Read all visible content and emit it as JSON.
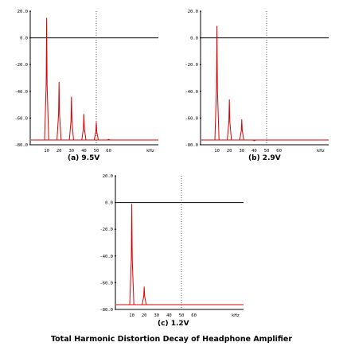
{
  "title": "Total Harmonic Distortion Decay of Headphone Amplifier",
  "colors": {
    "signal": "#dd0000",
    "zero_line": "#000000",
    "grid": "#555555",
    "axis": "#000000"
  },
  "chart_data": [
    {
      "type": "line",
      "caption": "(a) 9.5V",
      "ylim": [
        -80,
        20
      ],
      "y_ticks": [
        "20.0",
        "0.0",
        "-20.0",
        "-40.0",
        "-60.0",
        "-80.0"
      ],
      "x_ticks": [
        "10",
        "20",
        "30",
        "40",
        "50",
        "60"
      ],
      "x_unit": "kHz",
      "xlim": [
        0,
        100
      ],
      "grid": "dotted vertical at 50 kHz",
      "peaks": [
        {
          "x": 10,
          "y": 15
        },
        {
          "x": 20,
          "y": -33
        },
        {
          "x": 30,
          "y": -44
        },
        {
          "x": 40,
          "y": -57
        },
        {
          "x": 50,
          "y": -63
        },
        {
          "x": 60,
          "y": -76
        }
      ]
    },
    {
      "type": "line",
      "caption": "(b) 2.9V",
      "ylim": [
        -80,
        20
      ],
      "y_ticks": [
        "20.0",
        "0.0",
        "-20.0",
        "-40.0",
        "-60.0",
        "-80.0"
      ],
      "x_ticks": [
        "10",
        "20",
        "30",
        "40",
        "50",
        "60"
      ],
      "x_unit": "kHz",
      "xlim": [
        0,
        100
      ],
      "grid": "dotted vertical at 50 kHz",
      "peaks": [
        {
          "x": 10,
          "y": 9
        },
        {
          "x": 20,
          "y": -46
        },
        {
          "x": 30,
          "y": -61
        },
        {
          "x": 40,
          "y": -77
        }
      ]
    },
    {
      "type": "line",
      "caption": "(c) 1.2V",
      "ylim": [
        -80,
        20
      ],
      "y_ticks": [
        "20.0",
        "0.0",
        "-20.0",
        "-40.0",
        "-60.0",
        "-80.0"
      ],
      "x_ticks": [
        "10",
        "20",
        "30",
        "40",
        "50",
        "60"
      ],
      "x_unit": "kHz",
      "xlim": [
        0,
        100
      ],
      "grid": "dotted vertical at 50 kHz",
      "peaks": [
        {
          "x": 10,
          "y": -1
        },
        {
          "x": 20,
          "y": -63
        }
      ]
    }
  ]
}
